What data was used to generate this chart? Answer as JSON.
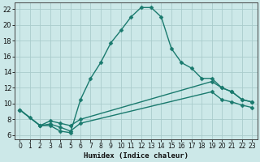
{
  "xlabel": "Humidex (Indice chaleur)",
  "background_color": "#cce8e8",
  "grid_color": "#aacccc",
  "line_color": "#1a7a6e",
  "xlim": [
    -0.5,
    23.5
  ],
  "ylim": [
    5.5,
    22.8
  ],
  "xticks": [
    0,
    1,
    2,
    3,
    4,
    5,
    6,
    7,
    8,
    9,
    10,
    11,
    12,
    13,
    14,
    15,
    16,
    17,
    18,
    19,
    20,
    21,
    22,
    23
  ],
  "yticks": [
    6,
    8,
    10,
    12,
    14,
    16,
    18,
    20,
    22
  ],
  "series": [
    {
      "x": [
        0,
        1,
        2,
        3,
        4,
        5,
        6,
        7,
        8,
        9,
        10,
        11,
        12,
        13,
        14,
        15,
        16,
        17,
        18,
        19,
        20,
        21,
        22,
        23
      ],
      "y": [
        9.2,
        8.2,
        7.2,
        7.2,
        6.5,
        6.3,
        10.5,
        13.2,
        15.2,
        17.7,
        19.3,
        21.0,
        22.2,
        22.2,
        21.0,
        17.0,
        15.2,
        14.5,
        13.2,
        13.2,
        12.0,
        11.5,
        10.5,
        10.2
      ],
      "marker": "D",
      "markersize": 2.5,
      "linewidth": 1.0
    },
    {
      "x": [
        0,
        2,
        3,
        4,
        5,
        6,
        19,
        20,
        21,
        22,
        23
      ],
      "y": [
        9.2,
        7.2,
        7.8,
        7.5,
        7.2,
        8.0,
        12.8,
        12.0,
        11.5,
        10.5,
        10.2
      ],
      "marker": "D",
      "markersize": 2.5,
      "linewidth": 1.0
    },
    {
      "x": [
        0,
        2,
        3,
        4,
        5,
        6,
        19,
        20,
        21,
        22,
        23
      ],
      "y": [
        9.2,
        7.2,
        7.4,
        7.0,
        6.5,
        7.5,
        11.5,
        10.5,
        10.2,
        9.8,
        9.5
      ],
      "marker": "D",
      "markersize": 2.5,
      "linewidth": 1.0
    }
  ]
}
